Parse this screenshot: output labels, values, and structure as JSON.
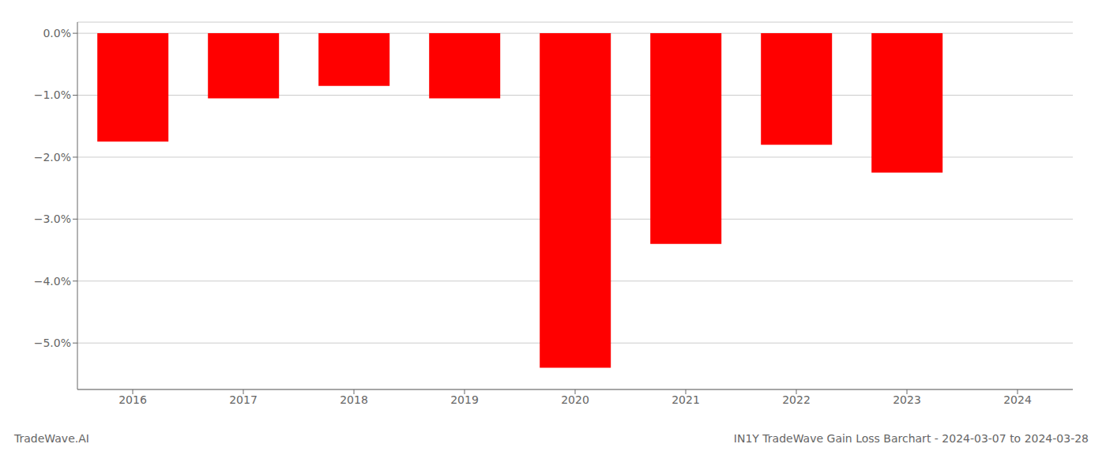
{
  "chart_data": {
    "type": "bar",
    "title": "IN1Y TradeWave Gain Loss Barchart - 2024-03-07 to 2024-03-28",
    "annotations": [
      "TradeWave.AI"
    ],
    "categories": [
      "2016",
      "2017",
      "2018",
      "2019",
      "2020",
      "2021",
      "2022",
      "2023",
      "2024"
    ],
    "values": [
      -1.75,
      -1.05,
      -0.85,
      -1.05,
      -5.4,
      -3.4,
      -1.8,
      -2.25,
      0.0
    ],
    "color": "#ff0000",
    "ylim": [
      -5.75,
      0.18
    ],
    "yticks": [
      {
        "value": 0.0,
        "label": "0.0%"
      },
      {
        "value": -1.0,
        "label": "−1.0%"
      },
      {
        "value": -2.0,
        "label": "−2.0%"
      },
      {
        "value": -3.0,
        "label": "−3.0%"
      },
      {
        "value": -4.0,
        "label": "−4.0%"
      },
      {
        "value": -5.0,
        "label": "−5.0%"
      }
    ],
    "grid": true
  }
}
